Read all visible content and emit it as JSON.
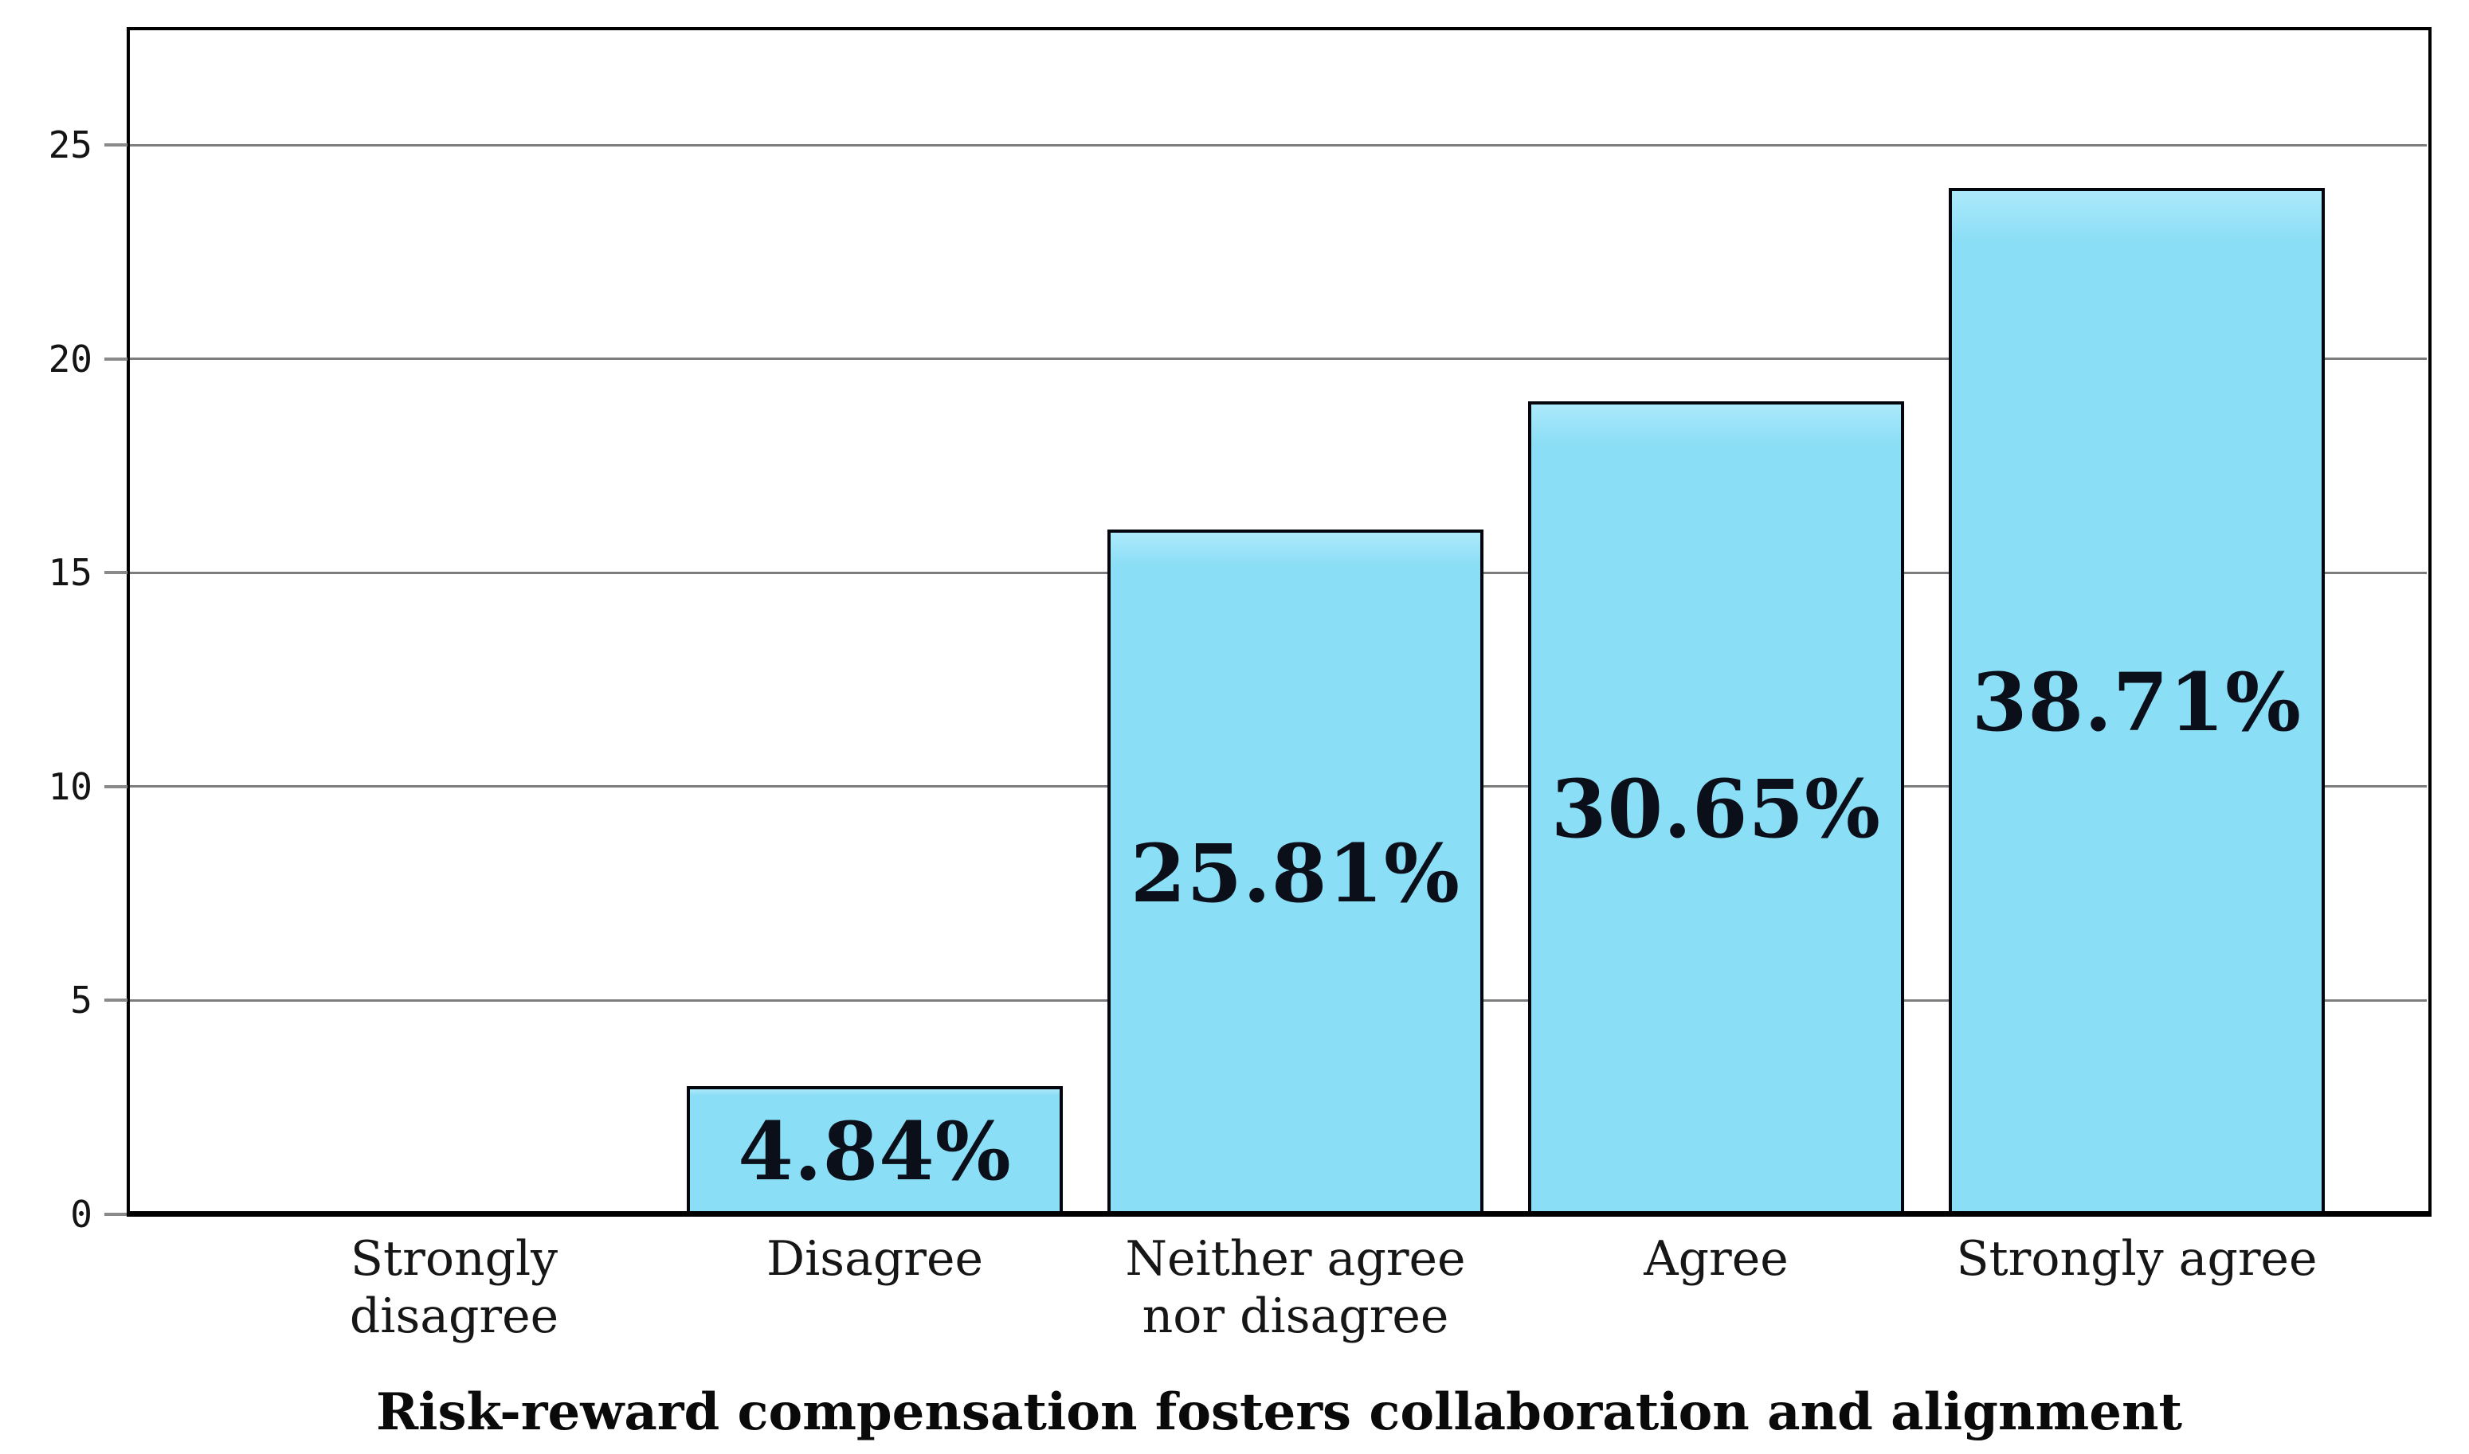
{
  "chart_data": {
    "type": "bar",
    "title": "Risk-reward compensation fosters collaboration and alignment",
    "categories": [
      "Strongly disagree",
      "Disagree",
      "Neither agree nor disagree",
      "Agree",
      "Strongly agree"
    ],
    "values": [
      0,
      3,
      16,
      19,
      24
    ],
    "bar_labels": [
      "",
      "4.84%",
      "25.81%",
      "30.65%",
      "38.71%"
    ],
    "yticks": [
      0,
      5,
      10,
      15,
      20,
      25
    ],
    "ylim": [
      0,
      27.7
    ],
    "xlabel": "",
    "ylabel": "",
    "grid": "horizontal",
    "legend_position": "none",
    "colors": {
      "bar_fill": "#8adef6",
      "bar_fill_top": "#ace9fb",
      "bar_border": "#04060e",
      "gridline": "#7d7d7d",
      "axis": "#000000",
      "label_text": "#0b0f1a"
    }
  }
}
